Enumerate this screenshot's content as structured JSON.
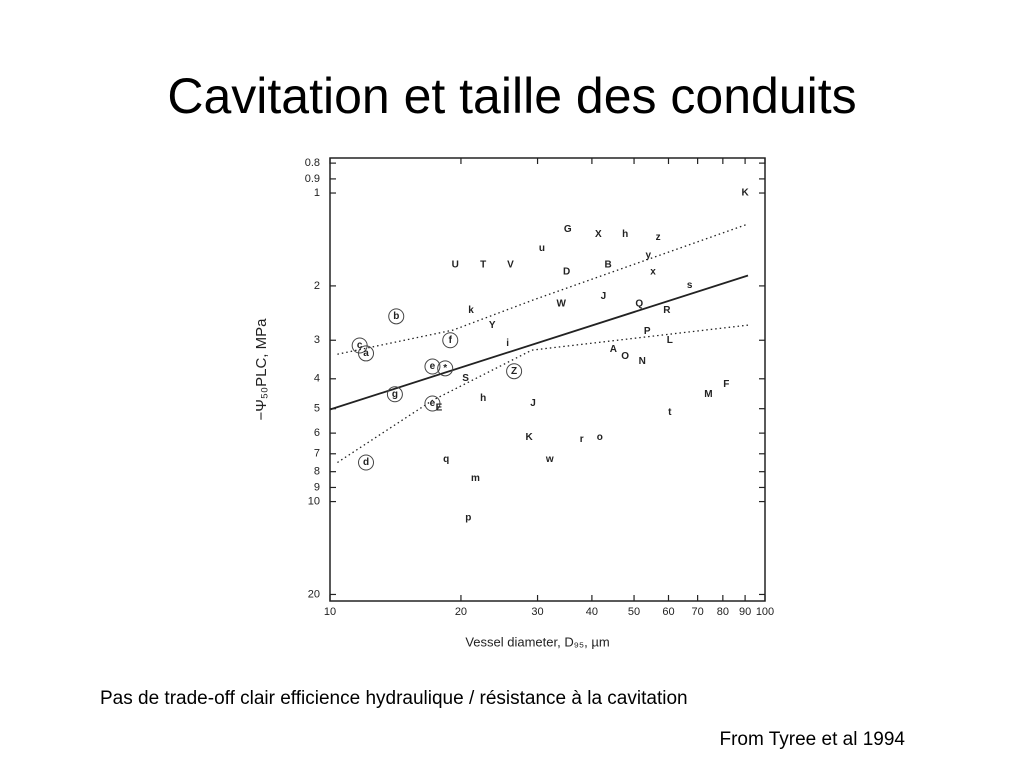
{
  "title": "Cavitation et taille des conduits",
  "caption": "Pas de trade-off clair efficience hydraulique / résistance à la cavitation",
  "source": "From Tyree et al 1994",
  "chart_data": {
    "type": "scatter",
    "xlabel": "Vessel diameter, D₉₅, µm",
    "ylabel": "−Ψ₅₀PLC, MPa",
    "xscale": "log",
    "yscale": "log",
    "y_inverted": true,
    "xlim": [
      10,
      100
    ],
    "ylim": [
      0.77,
      21
    ],
    "xticks": [
      10,
      20,
      30,
      40,
      50,
      60,
      70,
      80,
      90,
      100
    ],
    "yticks": [
      0.8,
      0.9,
      1,
      2,
      3,
      4,
      5,
      6,
      7,
      8,
      9,
      10,
      20
    ],
    "points": {
      "labels": [
        "G",
        "X",
        "h",
        "z",
        "u",
        "y",
        "U",
        "T",
        "V",
        "B",
        "D",
        "x",
        "s",
        "J",
        "W",
        "Q",
        "k",
        "R",
        "b",
        "Y",
        "P",
        "f",
        "L",
        "i",
        "c",
        "A",
        "a",
        "O",
        "N",
        "e",
        "*",
        "Z",
        "S",
        "g",
        "M",
        "F",
        "h",
        "J",
        "e",
        "E",
        "t",
        "K",
        "r",
        "o",
        "w",
        "d",
        "q",
        "m",
        "p",
        "K"
      ],
      "x": [
        35.2,
        41.4,
        47.7,
        56.8,
        30.7,
        53.9,
        19.4,
        22.5,
        26.0,
        43.6,
        35.0,
        55.3,
        67.1,
        42.5,
        34.0,
        51.4,
        21.1,
        59.5,
        14.2,
        23.6,
        53.6,
        18.9,
        60.4,
        25.6,
        11.7,
        44.8,
        12.1,
        47.7,
        52.2,
        17.2,
        18.4,
        26.5,
        20.5,
        14.1,
        74.1,
        81.5,
        22.5,
        29.3,
        17.2,
        17.8,
        60.4,
        28.7,
        37.9,
        41.7,
        32.0,
        12.1,
        18.5,
        21.6,
        20.8,
        90.0
      ],
      "y": [
        1.31,
        1.36,
        1.36,
        1.39,
        1.51,
        1.59,
        1.71,
        1.71,
        1.71,
        1.71,
        1.8,
        1.8,
        1.99,
        2.16,
        2.29,
        2.29,
        2.4,
        2.4,
        2.51,
        2.68,
        2.81,
        3.0,
        3.0,
        3.07,
        3.12,
        3.21,
        3.31,
        3.38,
        3.51,
        3.65,
        3.7,
        3.78,
        3.99,
        4.49,
        4.49,
        4.17,
        4.63,
        4.81,
        4.81,
        4.96,
        5.14,
        6.2,
        6.29,
        6.2,
        7.31,
        7.47,
        7.31,
        8.42,
        11.3,
        1.0
      ],
      "circled": [
        false,
        false,
        false,
        false,
        false,
        false,
        false,
        false,
        false,
        false,
        false,
        false,
        false,
        false,
        false,
        false,
        false,
        false,
        true,
        false,
        false,
        true,
        false,
        false,
        true,
        false,
        true,
        false,
        false,
        true,
        true,
        true,
        false,
        true,
        false,
        false,
        false,
        false,
        true,
        false,
        false,
        false,
        false,
        false,
        false,
        true,
        false,
        false,
        false,
        false
      ]
    },
    "lines": [
      {
        "style": "solid",
        "x": [
          10,
          91.4
        ],
        "values": [
          5.03,
          1.85
        ]
      },
      {
        "style": "dotted",
        "x": [
          10.4,
          19.2,
          29.1,
          91.4
        ],
        "values": [
          3.33,
          2.78,
          2.23,
          1.26
        ]
      },
      {
        "style": "dotted",
        "x": [
          10.4,
          17.2,
          29.1,
          91.4
        ],
        "values": [
          7.47,
          4.7,
          3.23,
          2.68
        ]
      }
    ]
  }
}
